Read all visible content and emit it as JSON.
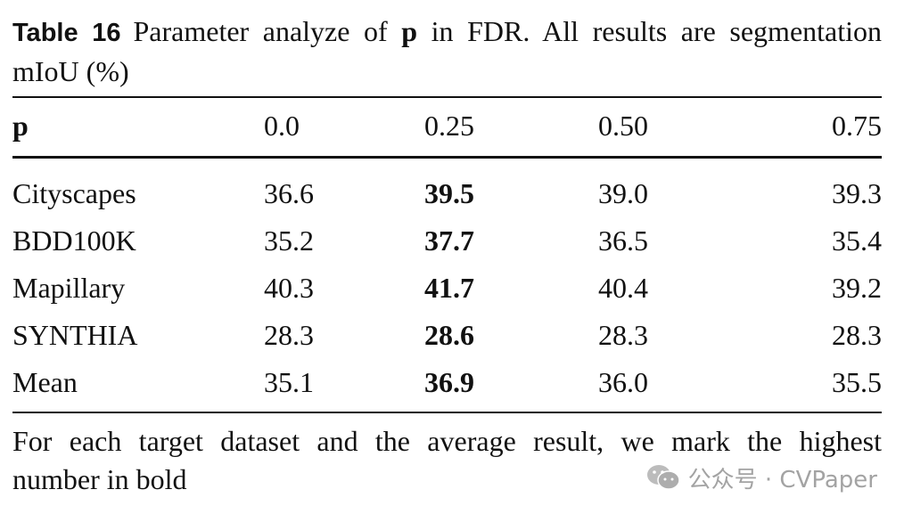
{
  "caption": {
    "label": "Table 16",
    "text_before": "Parameter analyze of ",
    "bold_param": "p",
    "text_after": " in FDR. All results are segmentation mIoU (%)"
  },
  "table": {
    "header": [
      "p",
      "0.0",
      "0.25",
      "0.50",
      "0.75"
    ],
    "rows": [
      {
        "label": "Cityscapes",
        "values": [
          "36.6",
          "39.5",
          "39.0",
          "39.3"
        ],
        "best_index": 1
      },
      {
        "label": "BDD100K",
        "values": [
          "35.2",
          "37.7",
          "36.5",
          "35.4"
        ],
        "best_index": 1
      },
      {
        "label": "Mapillary",
        "values": [
          "40.3",
          "41.7",
          "40.4",
          "39.2"
        ],
        "best_index": 1
      },
      {
        "label": "SYNTHIA",
        "values": [
          "28.3",
          "28.6",
          "28.3",
          "28.3"
        ],
        "best_index": 1
      },
      {
        "label": "Mean",
        "values": [
          "35.1",
          "36.9",
          "36.0",
          "35.5"
        ],
        "best_index": 1
      }
    ]
  },
  "footnote": {
    "line1": "For each target dataset and the average result, we mark the highest",
    "line2": "number in bold"
  },
  "watermark": {
    "icon": "wechat-icon",
    "text": "公众号 · CVPaper"
  }
}
